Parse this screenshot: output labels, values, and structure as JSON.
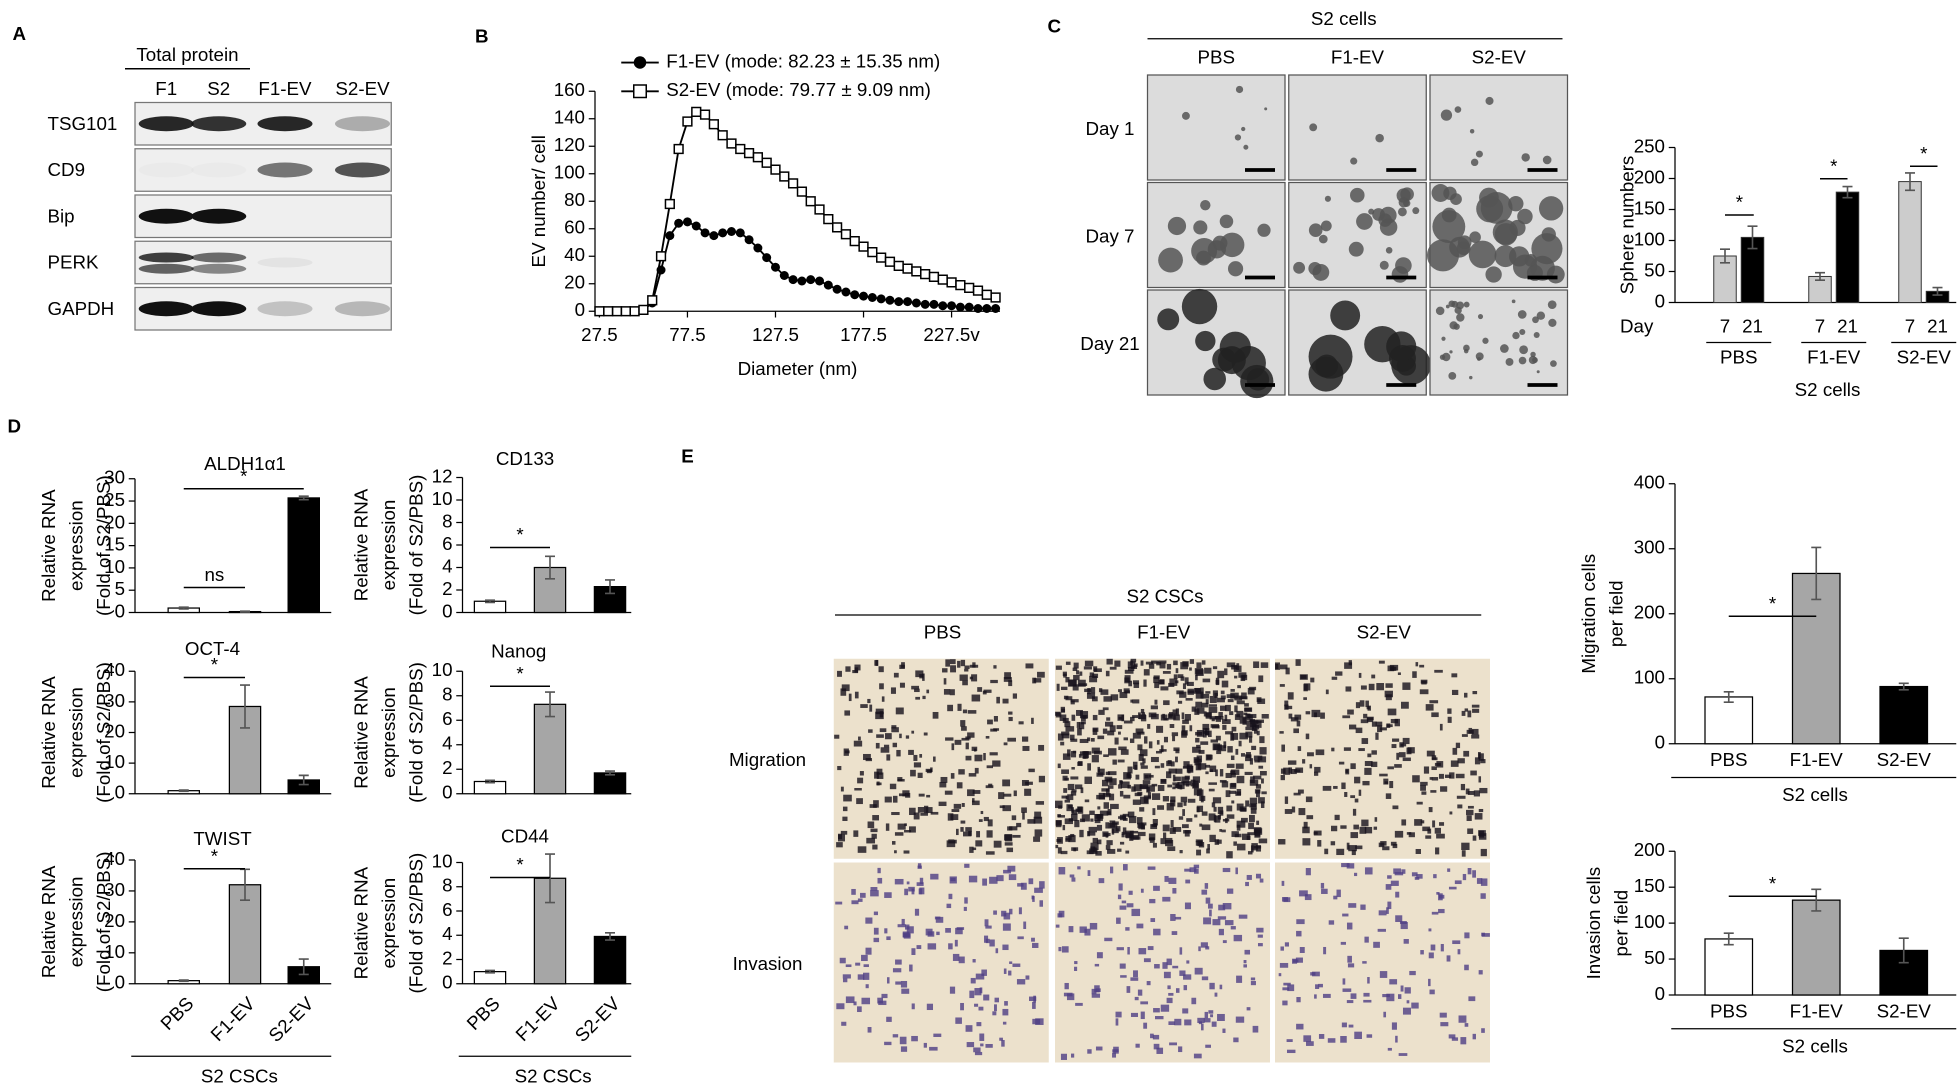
{
  "panel_labels": [
    "A",
    "B",
    "C",
    "D",
    "E"
  ],
  "blot": {
    "header": "Total protein",
    "lanes": [
      "F1",
      "S2",
      "F1-EV",
      "S2-EV"
    ],
    "proteins": [
      "TSG101",
      "CD9",
      "Bip",
      "PERK",
      "GAPDH"
    ]
  },
  "sphere_images": {
    "header": "S2 cells",
    "columns": [
      "PBS",
      "F1-EV",
      "S2-EV"
    ],
    "rows": [
      "Day 1",
      "Day 7",
      "Day 21"
    ]
  },
  "transwell_images": {
    "header": "S2 CSCs",
    "columns": [
      "PBS",
      "F1-EV",
      "S2-EV"
    ],
    "rows": [
      "Migration",
      "Invasion"
    ]
  },
  "chart_data": [
    {
      "type": "line",
      "xlabel": "Diameter (nm)",
      "ylabel": "EV number/ cell",
      "x": [
        27.5,
        32.5,
        37.5,
        42.5,
        47.5,
        52.5,
        57.5,
        62.5,
        67.5,
        72.5,
        77.5,
        82.5,
        87.5,
        92.5,
        97.5,
        102.5,
        107.5,
        112.5,
        117.5,
        122.5,
        127.5,
        132.5,
        137.5,
        142.5,
        147.5,
        152.5,
        157.5,
        162.5,
        167.5,
        172.5,
        177.5,
        182.5,
        187.5,
        192.5,
        197.5,
        202.5,
        207.5,
        212.5,
        217.5,
        222.5,
        227.5,
        232.5,
        237.5,
        242.5,
        247.5,
        252.5
      ],
      "series": [
        {
          "name": "F1-EV (mode: 82.23 ± 15.35 nm)",
          "color": "#000000",
          "marker": "circle",
          "values": [
            0,
            0,
            0,
            0,
            0,
            1,
            6,
            30,
            55,
            64,
            65,
            62,
            57,
            55,
            57,
            58,
            57,
            52,
            46,
            39,
            32,
            26,
            23,
            22,
            23,
            22,
            19,
            16,
            14,
            12,
            11,
            10,
            9,
            8,
            7,
            7,
            6,
            5,
            5,
            4,
            4,
            3,
            3,
            2,
            2,
            2
          ]
        },
        {
          "name": "S2-EV (mode: 79.77 ± 9.09 nm)",
          "color": "#000000",
          "marker": "square",
          "values": [
            0,
            0,
            0,
            0,
            0,
            1,
            8,
            40,
            78,
            118,
            138,
            145,
            143,
            136,
            128,
            122,
            118,
            115,
            112,
            108,
            103,
            98,
            93,
            87,
            80,
            74,
            67,
            61,
            56,
            51,
            47,
            43,
            39,
            36,
            33,
            31,
            29,
            27,
            25,
            23,
            21,
            19,
            17,
            15,
            12,
            10
          ]
        }
      ],
      "xlim": [
        25,
        255
      ],
      "xticks": [
        27.5,
        77.5,
        127.5,
        177.5,
        {
          "value": 227.5,
          "label": "227.5v"
        }
      ],
      "ylim": [
        0,
        160
      ],
      "yticks": [
        0,
        20,
        40,
        60,
        80,
        100,
        120,
        140,
        160
      ]
    },
    {
      "type": "bar",
      "ylabel": "Sphere numbers",
      "xlabel": "S2 cells",
      "day_label": "Day",
      "categories": [
        "PBS",
        "F1-EV",
        "S2-EV"
      ],
      "series": [
        {
          "name": "7",
          "color": "#cccccc",
          "values": [
            75,
            42,
            195
          ],
          "errors": [
            11,
            6,
            14
          ]
        },
        {
          "name": "21",
          "color": "#000000",
          "values": [
            105,
            178,
            18
          ],
          "errors": [
            18,
            9,
            6
          ]
        }
      ],
      "ylim": [
        0,
        250
      ],
      "yticks": [
        0,
        50,
        100,
        150,
        200,
        250
      ],
      "annotations": [
        "*",
        "*",
        "*"
      ]
    },
    {
      "type": "bar",
      "title": "ALDH1α1",
      "ylabel": [
        "Relative RNA",
        "expression",
        "(Fold of S2/PBS)"
      ],
      "values": [
        1,
        0.2,
        25.7
      ],
      "errors": [
        0.2,
        0.1,
        0.4
      ],
      "colors": [
        "#ffffff",
        "#a6a6a6",
        "#000000"
      ],
      "ylim": [
        0,
        30
      ],
      "yticks": [
        0,
        5,
        10,
        15,
        20,
        25,
        30
      ],
      "annotations": [
        "ns",
        "*"
      ]
    },
    {
      "type": "bar",
      "title": "CD133",
      "ylabel": [
        "Relative RNA",
        "expression",
        "(Fold of S2/PBS)"
      ],
      "values": [
        1,
        4,
        2.3
      ],
      "errors": [
        0.1,
        1,
        0.6
      ],
      "colors": [
        "#ffffff",
        "#a6a6a6",
        "#000000"
      ],
      "ylim": [
        0,
        12
      ],
      "yticks": [
        0,
        2,
        4,
        6,
        8,
        10,
        12
      ],
      "annotations": [
        "*"
      ]
    },
    {
      "type": "bar",
      "title": "OCT-4",
      "ylabel": [
        "Relative RNA",
        "expression",
        "(Fold of S2/PBS)"
      ],
      "values": [
        1,
        28.5,
        4.5
      ],
      "errors": [
        0.2,
        7,
        1.5
      ],
      "colors": [
        "#ffffff",
        "#a6a6a6",
        "#000000"
      ],
      "ylim": [
        0,
        40
      ],
      "yticks": [
        0,
        10,
        20,
        30,
        40
      ],
      "annotations": [
        "*"
      ]
    },
    {
      "type": "bar",
      "title": "Nanog",
      "ylabel": [
        "Relative RNA",
        "expression",
        "(Fold of S2/PBS)"
      ],
      "values": [
        1,
        7.3,
        1.7
      ],
      "errors": [
        0.1,
        1,
        0.15
      ],
      "colors": [
        "#ffffff",
        "#a6a6a6",
        "#000000"
      ],
      "ylim": [
        0,
        10
      ],
      "yticks": [
        0,
        2,
        4,
        6,
        8,
        10
      ],
      "annotations": [
        "*"
      ]
    },
    {
      "type": "bar",
      "title": "TWIST",
      "ylabel": [
        "Relative RNA",
        "expression",
        "(Fold of S2/PBS)"
      ],
      "xlabel": "S2 CSCs",
      "categories": [
        "PBS",
        "F1-EV",
        "S2-EV"
      ],
      "values": [
        1,
        32,
        5.5
      ],
      "errors": [
        0.2,
        5,
        2.5
      ],
      "colors": [
        "#ffffff",
        "#a6a6a6",
        "#000000"
      ],
      "ylim": [
        0,
        40
      ],
      "yticks": [
        0,
        10,
        20,
        30,
        40
      ],
      "annotations": [
        "*"
      ]
    },
    {
      "type": "bar",
      "title": "CD44",
      "ylabel": [
        "Relative RNA",
        "expression",
        "(Fold of S2/PBS)"
      ],
      "xlabel": "S2 CSCs",
      "categories": [
        "PBS",
        "F1-EV",
        "S2-EV"
      ],
      "values": [
        1,
        8.7,
        3.9
      ],
      "errors": [
        0.1,
        2,
        0.3
      ],
      "colors": [
        "#ffffff",
        "#a6a6a6",
        "#000000"
      ],
      "ylim": [
        0,
        10
      ],
      "yticks": [
        0,
        2,
        4,
        6,
        8,
        10
      ],
      "annotations": [
        "*"
      ]
    },
    {
      "type": "bar",
      "ylabel": [
        "Migration cells",
        "per field"
      ],
      "xlabel": "S2 cells",
      "categories": [
        "PBS",
        "F1-EV",
        "S2-EV"
      ],
      "values": [
        72,
        262,
        88
      ],
      "errors": [
        8,
        40,
        5
      ],
      "colors": [
        "#ffffff",
        "#a6a6a6",
        "#000000"
      ],
      "ylim": [
        0,
        400
      ],
      "yticks": [
        0,
        100,
        200,
        300,
        400
      ],
      "annotations": [
        "*"
      ]
    },
    {
      "type": "bar",
      "ylabel": [
        "Invasion cells",
        "per field"
      ],
      "xlabel": "S2 cells",
      "categories": [
        "PBS",
        "F1-EV",
        "S2-EV"
      ],
      "values": [
        78,
        132,
        62
      ],
      "errors": [
        8,
        15,
        17
      ],
      "colors": [
        "#ffffff",
        "#a6a6a6",
        "#000000"
      ],
      "ylim": [
        0,
        200
      ],
      "yticks": [
        0,
        50,
        100,
        150,
        200
      ],
      "annotations": [
        "*"
      ]
    }
  ]
}
